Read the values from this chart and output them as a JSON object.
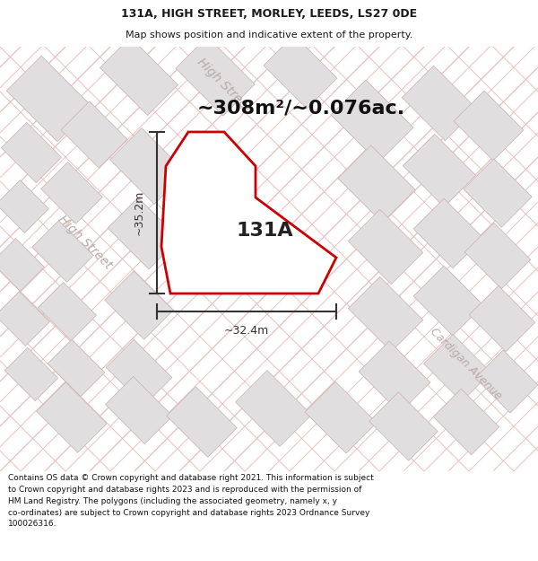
{
  "title_line1": "131A, HIGH STREET, MORLEY, LEEDS, LS27 0DE",
  "title_line2": "Map shows position and indicative extent of the property.",
  "area_text": "~308m²/~0.076ac.",
  "label_131a": "131A",
  "dim_width": "~32.4m",
  "dim_height": "~35.2m",
  "street_label_high_street_diag": "High Street",
  "street_label_high_street_left": "High Street",
  "street_label_cardigan": "Cardigan Avenue",
  "footer_text": "Contains OS data © Crown copyright and database right 2021. This information is subject\nto Crown copyright and database rights 2023 and is reproduced with the permission of\nHM Land Registry. The polygons (including the associated geometry, namely x, y\nco-ordinates) are subject to Crown copyright and database rights 2023 Ordnance Survey\n100026316.",
  "map_bg": "#f5f3f3",
  "block_color": "#e0dede",
  "block_edge_color": "#c8b0b0",
  "road_line_color": "#e8c0c0",
  "property_fill": "#ffffff",
  "property_edge": "#cc0000",
  "property_edge_width": 2.0,
  "dim_line_color": "#333333",
  "text_color": "#1a1a1a",
  "street_text_color": "#bbaaaa",
  "title_fontsize": 9,
  "subtitle_fontsize": 8,
  "area_fontsize": 16,
  "label_fontsize": 16,
  "dim_fontsize": 9,
  "street_fontsize": 10,
  "footer_fontsize": 6.5
}
